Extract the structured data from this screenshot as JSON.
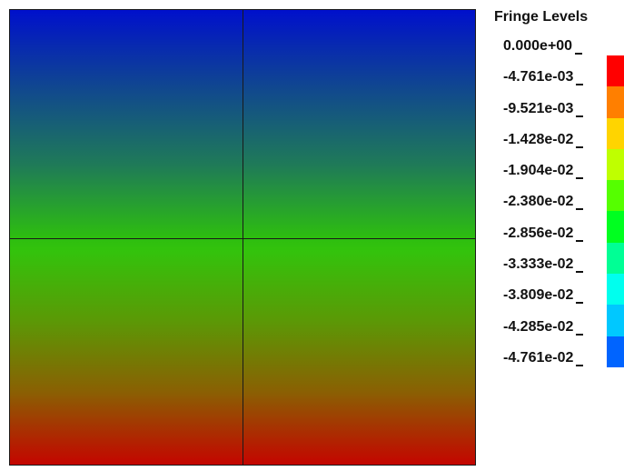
{
  "legend": {
    "title": "Fringe Levels",
    "levels": [
      "0.000e+00",
      "-4.761e-03",
      "-9.521e-03",
      "-1.428e-02",
      "-1.904e-02",
      "-2.380e-02",
      "-2.856e-02",
      "-3.333e-02",
      "-3.809e-02",
      "-4.285e-02",
      "-4.761e-02"
    ],
    "colors": [
      "#ff0000",
      "#ff7f00",
      "#ffd400",
      "#bfff00",
      "#55ff00",
      "#00ff20",
      "#00ff95",
      "#00ffee",
      "#00c8ff",
      "#0064ff",
      "#0000ff"
    ]
  },
  "contour": {
    "top_color": "#0010cc",
    "middle_color": "#33c30c",
    "bottom_color": "#c40500"
  }
}
